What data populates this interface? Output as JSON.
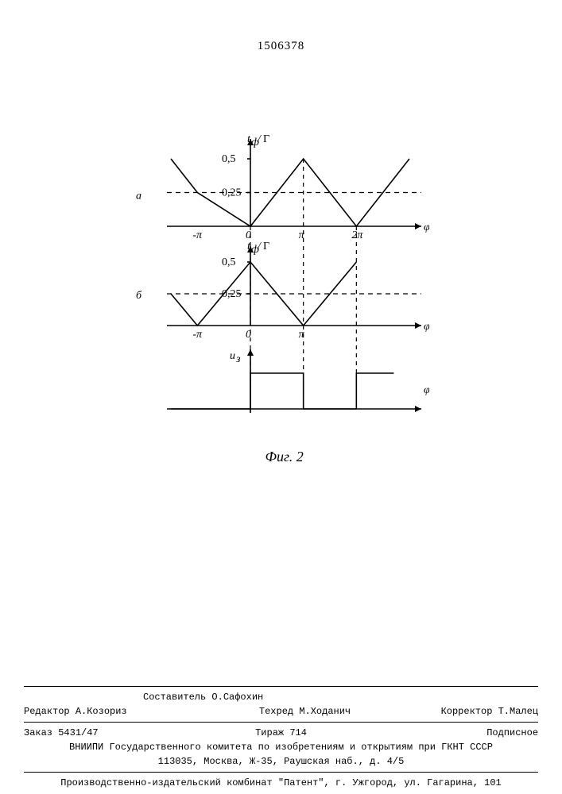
{
  "document_number": "1506378",
  "figure_caption": "Фиг. 2",
  "charts": {
    "background": "#ffffff",
    "stroke": "#000000",
    "stroke_width": 1.6,
    "dash_width": 1.2,
    "panel_a": {
      "label": "а",
      "y_axis_label": "t_ф / T",
      "x_axis_label": "φ",
      "y_ticks": [
        {
          "value": 0.25,
          "label": "0,25"
        },
        {
          "value": 0.5,
          "label": "0,5"
        }
      ],
      "x_ticks": [
        {
          "value": -3.1416,
          "label": "-π"
        },
        {
          "value": 0,
          "label": "0"
        },
        {
          "value": 3.1416,
          "label": "π"
        },
        {
          "value": 6.2832,
          "label": "2π"
        }
      ],
      "series": [
        {
          "x": -4.7124,
          "y": 0.5
        },
        {
          "x": -3.1416,
          "y": 0.25
        },
        {
          "x": 0,
          "y": 0.0
        },
        {
          "x": 3.1416,
          "y": 0.5
        },
        {
          "x": 6.2832,
          "y": 0.0
        },
        {
          "x": 9.4248,
          "y": 0.5
        }
      ],
      "dashed_y": 0.25
    },
    "panel_b": {
      "label": "б",
      "y_axis_label": "t_ф / T",
      "x_axis_label": "φ",
      "y_ticks": [
        {
          "value": 0.25,
          "label": "0,25"
        },
        {
          "value": 0.5,
          "label": "0,5"
        }
      ],
      "x_ticks": [
        {
          "value": -3.1416,
          "label": "-π"
        },
        {
          "value": 0,
          "label": "0"
        },
        {
          "value": 3.1416,
          "label": "π"
        }
      ],
      "series": [
        {
          "x": -4.7124,
          "y": 0.25
        },
        {
          "x": -3.1416,
          "y": 0.0
        },
        {
          "x": 0,
          "y": 0.5
        },
        {
          "x": 3.1416,
          "y": 0.0
        },
        {
          "x": 6.2832,
          "y": 0.5
        }
      ],
      "dashed_y": 0.25
    },
    "panel_c": {
      "label": "",
      "y_axis_label": "u_з",
      "x_axis_label": "φ",
      "low": 0,
      "high": 1,
      "transitions": [
        {
          "start": -4.7124,
          "level": 0
        },
        {
          "start": 0,
          "level": 1
        },
        {
          "start": 3.1416,
          "level": 0
        },
        {
          "start": 6.2832,
          "level": 1
        }
      ],
      "x_end": 8.5
    },
    "x_range": [
      -4.7124,
      9.4248
    ],
    "y_range": [
      0,
      0.5
    ]
  },
  "footer": {
    "composer_label": "Составитель",
    "composer": "О.Сафохин",
    "editor_label": "Редактор",
    "editor": "А.Козориз",
    "techred_label": "Техред",
    "techred": "М.Ходанич",
    "corrector_label": "Корректор",
    "corrector": "Т.Малец",
    "order_label": "Заказ",
    "order_number": "5431/47",
    "circulation_label": "Тираж",
    "circulation": "714",
    "subscription": "Подписное",
    "org_line": "ВНИИПИ Государственного комитета по изобретениям и открытиям при ГКНТ СССР",
    "address_line": "113035, Москва, Ж-35, Раушская наб., д. 4/5",
    "publisher_line": "Производственно-издательский комбинат \"Патент\", г. Ужгород, ул. Гагарина, 101"
  }
}
